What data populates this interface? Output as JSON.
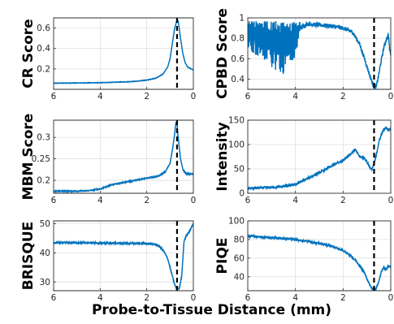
{
  "figure": {
    "xlabel": "Probe-to-Tissue Distance (mm)"
  },
  "chart_data": [
    {
      "type": "line",
      "ylabel": "CR Score",
      "xlim": [
        6,
        0
      ],
      "ylim": [
        0,
        0.7
      ],
      "xticks": [
        "6",
        "4",
        "2",
        "0"
      ],
      "yticks": [
        "0.2",
        "0.4",
        "0.6"
      ],
      "grid": true,
      "line_color": "#0072BD",
      "noise": 0.002,
      "marker_x": 0.7,
      "marker_style": "black dashed vertical line",
      "x": [
        6,
        5,
        4,
        3,
        2.5,
        2,
        1.6,
        1.3,
        1.1,
        1.0,
        0.9,
        0.8,
        0.7,
        0.65,
        0.55,
        0.45,
        0.35,
        0.25,
        0.1,
        0.0
      ],
      "y": [
        0.06,
        0.062,
        0.065,
        0.072,
        0.078,
        0.09,
        0.11,
        0.15,
        0.22,
        0.3,
        0.45,
        0.6,
        0.68,
        0.67,
        0.5,
        0.35,
        0.26,
        0.22,
        0.2,
        0.19
      ]
    },
    {
      "type": "line",
      "ylabel": "CPBD Score",
      "xlim": [
        6,
        0
      ],
      "ylim": [
        0.3,
        1.0
      ],
      "xticks": [
        "6",
        "4",
        "2",
        "0"
      ],
      "yticks": [
        "0.4",
        "0.6",
        "0.8",
        "1"
      ],
      "grid": true,
      "line_color": "#0072BD",
      "noise": 0.02,
      "marker_x": 0.7,
      "marker_style": "black dashed vertical line",
      "x": [
        6,
        5.5,
        5.0,
        4.5,
        4.0,
        3.8,
        3.5,
        3.0,
        2.5,
        2.0,
        1.6,
        1.3,
        1.1,
        0.9,
        0.8,
        0.7,
        0.6,
        0.5,
        0.4,
        0.3,
        0.2,
        0.1,
        0.05,
        0.0
      ],
      "y": [
        0.86,
        0.84,
        0.82,
        0.8,
        0.86,
        0.9,
        0.94,
        0.93,
        0.92,
        0.9,
        0.86,
        0.74,
        0.6,
        0.45,
        0.38,
        0.32,
        0.33,
        0.45,
        0.58,
        0.7,
        0.78,
        0.83,
        0.7,
        0.65
      ],
      "noisy_band": {
        "x": [
          6,
          5.5,
          5.0,
          4.5,
          4.0,
          3.8
        ],
        "low": [
          0.7,
          0.6,
          0.5,
          0.45,
          0.62,
          0.85
        ],
        "high": [
          0.97,
          0.97,
          0.97,
          0.97,
          0.97,
          0.97
        ]
      }
    },
    {
      "type": "line",
      "ylabel": "MBM Score",
      "xlim": [
        6,
        0
      ],
      "ylim": [
        0.17,
        0.34
      ],
      "xticks": [
        "6",
        "4",
        "2",
        "0"
      ],
      "yticks": [
        "0.2",
        "0.25",
        "0.3"
      ],
      "grid": true,
      "line_color": "#0072BD",
      "noise": 0.001,
      "marker_x": 0.7,
      "marker_style": "black dashed vertical line",
      "x": [
        6,
        5,
        4.5,
        4,
        3.5,
        3,
        2.5,
        2.0,
        1.5,
        1.2,
        1.0,
        0.9,
        0.8,
        0.75,
        0.7,
        0.65,
        0.55,
        0.45,
        0.3,
        0.0
      ],
      "y": [
        0.175,
        0.175,
        0.176,
        0.18,
        0.19,
        0.195,
        0.2,
        0.205,
        0.21,
        0.22,
        0.24,
        0.27,
        0.31,
        0.335,
        0.33,
        0.3,
        0.25,
        0.225,
        0.215,
        0.215
      ]
    },
    {
      "type": "line",
      "ylabel": "Intensity",
      "xlim": [
        6,
        0
      ],
      "ylim": [
        0,
        150
      ],
      "xticks": [
        "6",
        "4",
        "2",
        "0"
      ],
      "yticks": [
        "0",
        "50",
        "100",
        "150"
      ],
      "grid": true,
      "line_color": "#0072BD",
      "noise": 2.5,
      "marker_x": 0.7,
      "marker_style": "black dashed vertical line",
      "x": [
        6,
        5,
        4.5,
        4,
        3.5,
        3,
        2.5,
        2.0,
        1.7,
        1.5,
        1.3,
        1.1,
        1.0,
        0.9,
        0.8,
        0.7,
        0.6,
        0.5,
        0.4,
        0.3,
        0.2,
        0.1,
        0.0
      ],
      "y": [
        10,
        12,
        14,
        18,
        30,
        42,
        55,
        68,
        80,
        90,
        75,
        72,
        65,
        55,
        48,
        60,
        80,
        105,
        120,
        130,
        135,
        130,
        133
      ]
    },
    {
      "type": "line",
      "ylabel": "BRISQUE",
      "xlim": [
        6,
        0
      ],
      "ylim": [
        27,
        51
      ],
      "xticks": [
        "6",
        "4",
        "2",
        "0"
      ],
      "yticks": [
        "30",
        "40",
        "50"
      ],
      "grid": true,
      "line_color": "#0072BD",
      "noise": 0.25,
      "marker_x": 0.7,
      "marker_style": "black dashed vertical line",
      "x": [
        6,
        5,
        4,
        3,
        2.5,
        2.0,
        1.7,
        1.5,
        1.3,
        1.1,
        1.0,
        0.9,
        0.8,
        0.7,
        0.6,
        0.5,
        0.45,
        0.4,
        0.35,
        0.3,
        0.2,
        0.1,
        0.0
      ],
      "y": [
        43.5,
        43.5,
        43.4,
        43.3,
        43.3,
        43.2,
        43.0,
        42.5,
        41.0,
        38.0,
        35.0,
        32.0,
        29.0,
        27.5,
        28.0,
        32.0,
        38.0,
        44.0,
        45.0,
        46.0,
        47.0,
        48.5,
        50.0
      ]
    },
    {
      "type": "line",
      "ylabel": "PIQE",
      "xlim": [
        6,
        0
      ],
      "ylim": [
        25,
        100
      ],
      "xticks": [
        "6",
        "4",
        "2",
        "0"
      ],
      "yticks": [
        "40",
        "60",
        "80",
        "100"
      ],
      "grid": true,
      "line_color": "#0072BD",
      "noise": 1.0,
      "marker_x": 0.7,
      "marker_style": "black dashed vertical line",
      "x": [
        6,
        5,
        4,
        3,
        2.5,
        2.0,
        1.7,
        1.5,
        1.3,
        1.1,
        1.0,
        0.9,
        0.8,
        0.7,
        0.6,
        0.5,
        0.4,
        0.3,
        0.2,
        0.1,
        0.0
      ],
      "y": [
        84,
        82,
        80,
        76,
        73,
        68,
        63,
        58,
        52,
        44,
        38,
        32,
        28,
        26,
        28,
        35,
        45,
        50,
        48,
        52,
        50
      ]
    }
  ]
}
